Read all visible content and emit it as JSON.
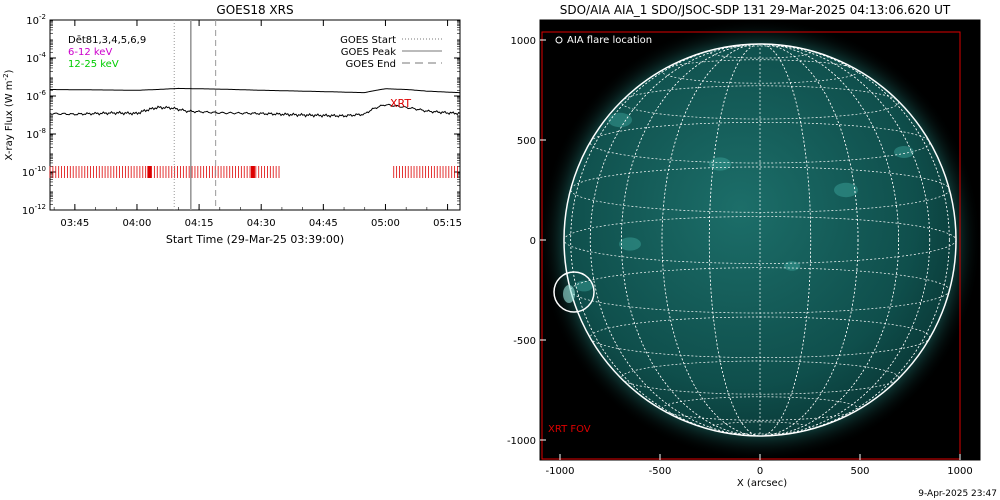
{
  "chart_data": [
    {
      "type": "line",
      "title": "GOES18 XRS",
      "ylabel": "X-ray Flux (W m",
      "ylabel_sup": "-2",
      "ylabel_close": ")",
      "xlabel": "Start Time (29-Mar-25 03:39:00)",
      "y_log": true,
      "ylim_exp": [
        -12,
        -2
      ],
      "yticks": [
        {
          "base": "10",
          "exp": "-2"
        },
        {
          "base": "10",
          "exp": "-4"
        },
        {
          "base": "10",
          "exp": "-6"
        },
        {
          "base": "10",
          "exp": "-8"
        },
        {
          "base": "10",
          "exp": "-10"
        },
        {
          "base": "10",
          "exp": "-12"
        }
      ],
      "xlim_min": [
        39,
        138
      ],
      "xticks": [
        {
          "label": "03:45",
          "min": 45
        },
        {
          "label": "04:00",
          "min": 60
        },
        {
          "label": "04:15",
          "min": 75
        },
        {
          "label": "04:30",
          "min": 90
        },
        {
          "label": "04:45",
          "min": 105
        },
        {
          "label": "05:00",
          "min": 120
        },
        {
          "label": "05:15",
          "min": 135
        }
      ],
      "legend_left": [
        {
          "label": "Dēt81,3,4,5,6,9",
          "color": "#000000"
        },
        {
          "label": "6-12 keV",
          "color": "#cc00cc"
        },
        {
          "label": "12-25 keV",
          "color": "#00cc00"
        }
      ],
      "legend_right": [
        {
          "label": "GOES Start",
          "style": "dotted"
        },
        {
          "label": "GOES Peak",
          "style": "solid"
        },
        {
          "label": "GOES End",
          "style": "dashed"
        }
      ],
      "goes_start_min": 69,
      "goes_peak_min": 73,
      "goes_end_min": 79,
      "xrt_label": "XRT",
      "xrt_color": "#dd0000",
      "xrt_coverage_min": [
        [
          39,
          95
        ],
        [
          122,
          138
        ]
      ],
      "series": [
        {
          "name": "",
          "color": "#000000",
          "x": [
            39,
            50,
            60,
            65,
            70,
            80,
            90,
            100,
            110,
            115,
            120,
            125,
            130,
            135,
            138
          ],
          "y": [
            2.2e-06,
            2.1e-06,
            2e-06,
            2.2e-06,
            2.5e-06,
            2.3e-06,
            2e-06,
            1.8e-06,
            1.6e-06,
            1.5e-06,
            2.4e-06,
            2.2e-06,
            1.8e-06,
            1.6e-06,
            1.5e-06
          ]
        },
        {
          "name": "",
          "color": "#000000",
          "x": [
            39,
            45,
            55,
            60,
            65,
            68,
            72,
            80,
            90,
            100,
            110,
            115,
            120,
            125,
            130,
            135,
            138
          ],
          "y": [
            1.2e-07,
            1.1e-07,
            1.3e-07,
            1.2e-07,
            2.5e-07,
            2.4e-07,
            1.6e-07,
            1.3e-07,
            1.2e-07,
            1e-07,
            9e-08,
            1.1e-07,
            3.5e-07,
            2.5e-07,
            1.6e-07,
            1.3e-07,
            1.2e-07
          ]
        }
      ]
    },
    {
      "type": "heatmap",
      "title": "SDO/AIA AIA_1 SDO/JSOC-SDP 131 29-Mar-2025 04:13:06.620 UT",
      "xlabel": "X (arcsec)",
      "ylabel": "",
      "xlim": [
        -1100,
        1100
      ],
      "ylim": [
        -1100,
        1100
      ],
      "xticks": [
        -1000,
        -500,
        0,
        500,
        1000
      ],
      "yticks": [
        1000,
        500,
        0,
        -500,
        -1000
      ],
      "solar_radius_arcsec": 980,
      "flare_location_arcsec": [
        -930,
        -260
      ],
      "flare_label": "AIA flare location",
      "xrt_fov_label": "XRT FOV",
      "xrt_fov_color": "#dd0000",
      "disk_color": "#0f4f4c",
      "grid_color": "#ffffff"
    }
  ],
  "footer": {
    "timestamp": "9-Apr-2025 23:47"
  }
}
